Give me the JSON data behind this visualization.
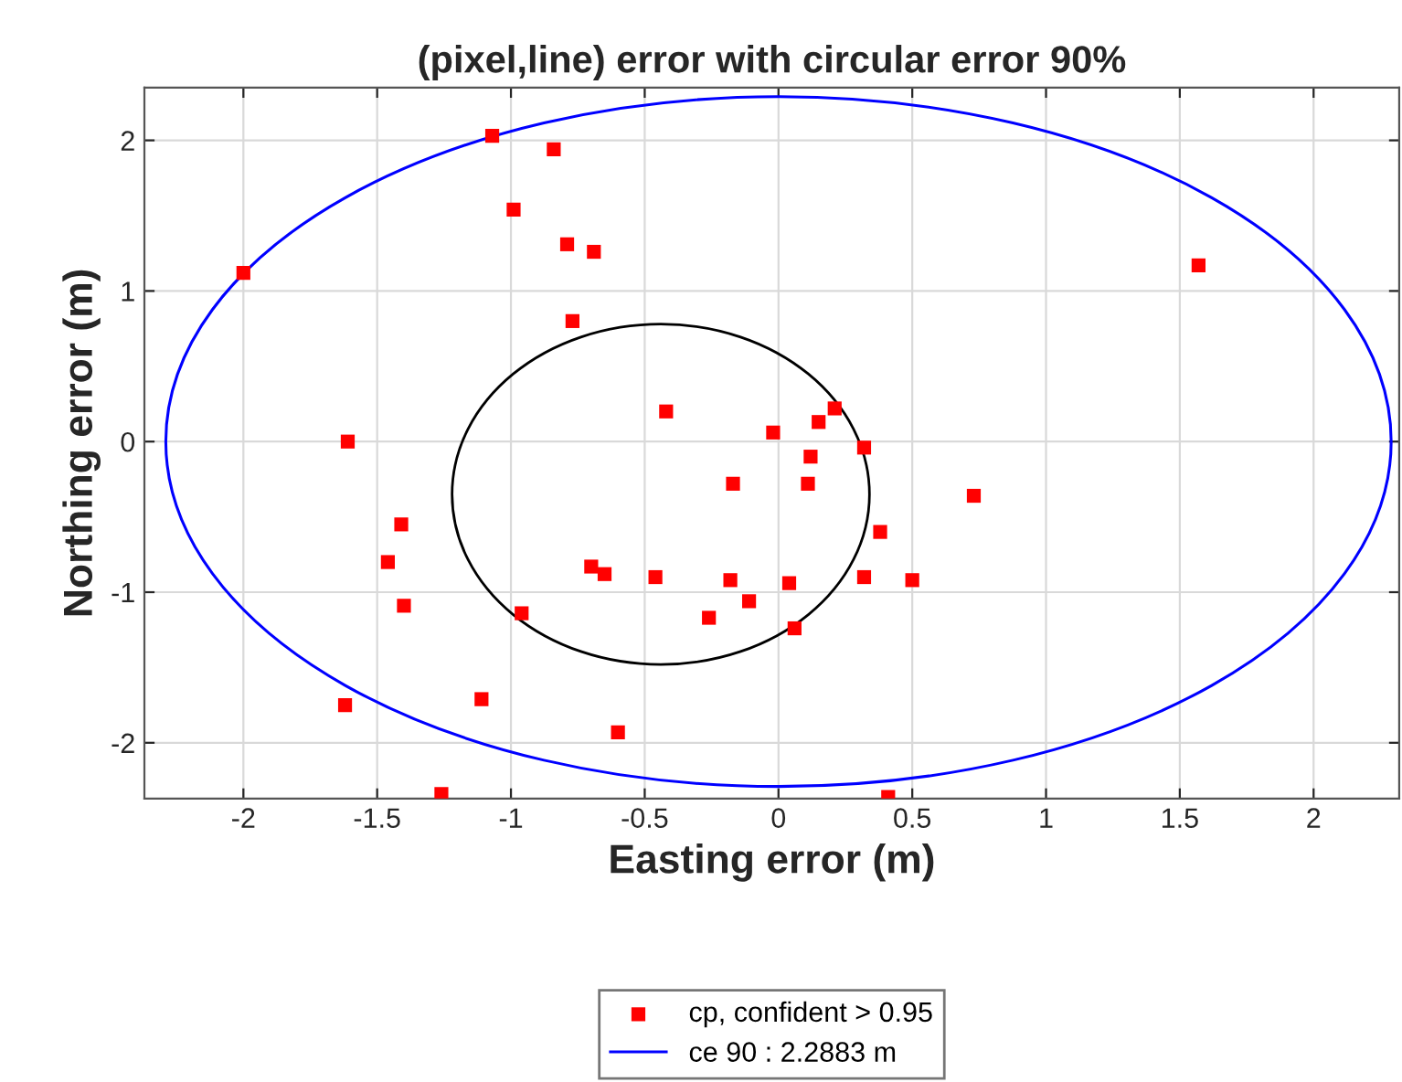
{
  "chart_data": {
    "type": "scatter",
    "title": "(pixel,line) error with circular error 90%",
    "xlabel": "Easting error (m)",
    "ylabel": "Northing error (m)",
    "xlim": [
      -2.37,
      2.32
    ],
    "ylim": [
      -2.37,
      2.35
    ],
    "xticks": [
      -2,
      -1.5,
      -1,
      -0.5,
      0,
      0.5,
      1,
      1.5,
      2
    ],
    "yticks": [
      -2,
      -1,
      0,
      1,
      2
    ],
    "grid": true,
    "legend": "bottom",
    "marker": "square",
    "annotations": [
      "ce 90 : 2.2883 m"
    ],
    "series": [
      {
        "name": "cp, confident > 0.95",
        "color": "#ff0000",
        "x": [
          -1.07,
          -0.84,
          -0.99,
          -0.79,
          -0.69,
          -2.0,
          -0.77,
          -0.42,
          -1.61,
          -0.02,
          1.57,
          0.15,
          0.21,
          0.32,
          0.12,
          -0.17,
          0.11,
          0.73,
          0.38,
          -0.18,
          0.04,
          0.32,
          0.5,
          -0.11,
          0.06,
          0.41,
          -1.41,
          -1.46,
          -1.4,
          -0.7,
          -0.65,
          -0.46,
          -0.26,
          -0.96,
          -1.62,
          -1.11,
          -0.6,
          -1.26
        ],
        "values": [
          2.03,
          1.94,
          1.54,
          1.31,
          1.26,
          1.12,
          0.8,
          0.2,
          0.0,
          0.06,
          1.17,
          0.13,
          0.22,
          -0.04,
          -0.1,
          -0.28,
          -0.28,
          -0.36,
          -0.6,
          -0.92,
          -0.94,
          -0.9,
          -0.92,
          -1.06,
          -1.24,
          -2.36,
          -0.55,
          -0.8,
          -1.09,
          -0.83,
          -0.88,
          -0.9,
          -1.17,
          -1.14,
          -1.75,
          -1.71,
          -1.93,
          -2.34
        ]
      }
    ]
  }
}
